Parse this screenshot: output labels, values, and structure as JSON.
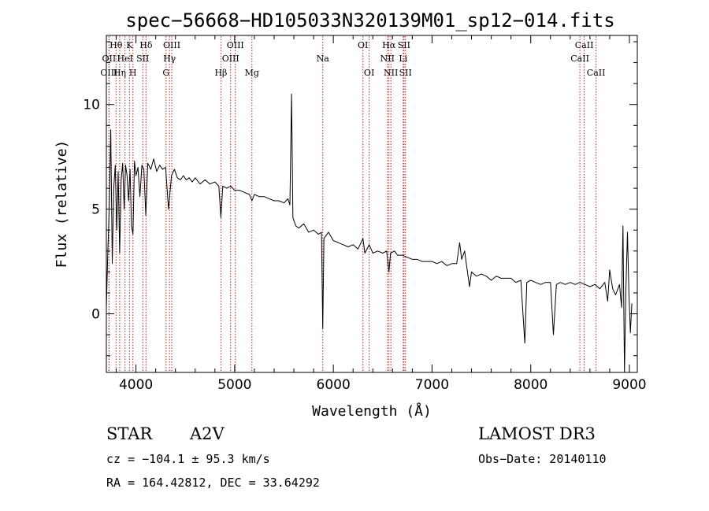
{
  "chart_data": {
    "type": "line",
    "title": "spec−56668−HD105033N320139M01_sp12−014.fits",
    "xlabel": "Wavelength (Å)",
    "ylabel": "Flux (relative)",
    "xlim": [
      3700,
      9080
    ],
    "ylim": [
      -2.8,
      13.3
    ],
    "xticks": [
      4000,
      5000,
      6000,
      7000,
      8000,
      9000
    ],
    "yticks": [
      0,
      5,
      10
    ],
    "series": [
      {
        "name": "flux",
        "points": [
          [
            3700,
            0.3
          ],
          [
            3715,
            3.0
          ],
          [
            3730,
            5.2
          ],
          [
            3745,
            8.8
          ],
          [
            3760,
            2.4
          ],
          [
            3775,
            6.0
          ],
          [
            3790,
            7.1
          ],
          [
            3805,
            4.0
          ],
          [
            3820,
            6.8
          ],
          [
            3835,
            2.9
          ],
          [
            3850,
            6.4
          ],
          [
            3865,
            7.2
          ],
          [
            3880,
            5.0
          ],
          [
            3895,
            7.1
          ],
          [
            3910,
            6.6
          ],
          [
            3925,
            5.4
          ],
          [
            3940,
            6.9
          ],
          [
            3955,
            4.2
          ],
          [
            3970,
            3.8
          ],
          [
            3985,
            7.3
          ],
          [
            4000,
            6.6
          ],
          [
            4020,
            7.0
          ],
          [
            4040,
            5.6
          ],
          [
            4060,
            7.1
          ],
          [
            4080,
            6.9
          ],
          [
            4100,
            4.7
          ],
          [
            4120,
            7.2
          ],
          [
            4150,
            6.9
          ],
          [
            4180,
            7.4
          ],
          [
            4210,
            6.8
          ],
          [
            4240,
            7.1
          ],
          [
            4270,
            6.9
          ],
          [
            4300,
            7.0
          ],
          [
            4330,
            5.0
          ],
          [
            4360,
            6.6
          ],
          [
            4390,
            6.9
          ],
          [
            4420,
            6.5
          ],
          [
            4450,
            6.4
          ],
          [
            4480,
            6.6
          ],
          [
            4510,
            6.4
          ],
          [
            4540,
            6.5
          ],
          [
            4570,
            6.3
          ],
          [
            4600,
            6.5
          ],
          [
            4650,
            6.2
          ],
          [
            4700,
            6.4
          ],
          [
            4750,
            6.2
          ],
          [
            4800,
            6.3
          ],
          [
            4840,
            6.1
          ],
          [
            4861,
            4.6
          ],
          [
            4880,
            6.1
          ],
          [
            4920,
            6.0
          ],
          [
            4960,
            6.1
          ],
          [
            5000,
            5.9
          ],
          [
            5050,
            5.9
          ],
          [
            5100,
            5.8
          ],
          [
            5150,
            5.7
          ],
          [
            5175,
            5.4
          ],
          [
            5200,
            5.7
          ],
          [
            5250,
            5.6
          ],
          [
            5300,
            5.6
          ],
          [
            5350,
            5.5
          ],
          [
            5400,
            5.4
          ],
          [
            5450,
            5.4
          ],
          [
            5500,
            5.3
          ],
          [
            5540,
            5.5
          ],
          [
            5560,
            5.2
          ],
          [
            5577,
            10.5
          ],
          [
            5590,
            4.6
          ],
          [
            5620,
            4.2
          ],
          [
            5650,
            4.1
          ],
          [
            5700,
            4.3
          ],
          [
            5750,
            3.9
          ],
          [
            5800,
            4.0
          ],
          [
            5850,
            3.8
          ],
          [
            5880,
            3.9
          ],
          [
            5893,
            -0.7
          ],
          [
            5905,
            3.6
          ],
          [
            5950,
            3.9
          ],
          [
            6000,
            3.5
          ],
          [
            6050,
            3.4
          ],
          [
            6100,
            3.3
          ],
          [
            6150,
            3.2
          ],
          [
            6200,
            3.3
          ],
          [
            6250,
            3.1
          ],
          [
            6300,
            3.6
          ],
          [
            6320,
            2.9
          ],
          [
            6363,
            3.3
          ],
          [
            6400,
            2.9
          ],
          [
            6450,
            3.0
          ],
          [
            6500,
            2.9
          ],
          [
            6540,
            3.0
          ],
          [
            6563,
            2.0
          ],
          [
            6580,
            2.9
          ],
          [
            6620,
            3.0
          ],
          [
            6650,
            2.8
          ],
          [
            6700,
            2.8
          ],
          [
            6750,
            2.7
          ],
          [
            6800,
            2.6
          ],
          [
            6850,
            2.6
          ],
          [
            6900,
            2.5
          ],
          [
            6950,
            2.5
          ],
          [
            7000,
            2.5
          ],
          [
            7050,
            2.4
          ],
          [
            7100,
            2.5
          ],
          [
            7150,
            2.3
          ],
          [
            7200,
            2.4
          ],
          [
            7250,
            2.4
          ],
          [
            7280,
            3.4
          ],
          [
            7300,
            2.6
          ],
          [
            7330,
            3.0
          ],
          [
            7350,
            2.3
          ],
          [
            7380,
            1.3
          ],
          [
            7400,
            2.0
          ],
          [
            7450,
            1.8
          ],
          [
            7500,
            1.9
          ],
          [
            7550,
            1.8
          ],
          [
            7600,
            1.6
          ],
          [
            7650,
            1.8
          ],
          [
            7700,
            1.7
          ],
          [
            7750,
            1.7
          ],
          [
            7800,
            1.7
          ],
          [
            7850,
            1.5
          ],
          [
            7900,
            1.6
          ],
          [
            7940,
            -1.4
          ],
          [
            7960,
            1.5
          ],
          [
            8000,
            1.6
          ],
          [
            8050,
            1.5
          ],
          [
            8100,
            1.4
          ],
          [
            8150,
            1.5
          ],
          [
            8200,
            1.5
          ],
          [
            8230,
            -1.0
          ],
          [
            8260,
            1.4
          ],
          [
            8300,
            1.5
          ],
          [
            8350,
            1.4
          ],
          [
            8400,
            1.5
          ],
          [
            8450,
            1.4
          ],
          [
            8500,
            1.5
          ],
          [
            8550,
            1.4
          ],
          [
            8600,
            1.3
          ],
          [
            8650,
            1.4
          ],
          [
            8700,
            1.2
          ],
          [
            8750,
            1.5
          ],
          [
            8780,
            0.6
          ],
          [
            8800,
            2.1
          ],
          [
            8830,
            1.2
          ],
          [
            8860,
            0.9
          ],
          [
            8900,
            1.4
          ],
          [
            8920,
            0.3
          ],
          [
            8935,
            4.2
          ],
          [
            8950,
            -2.8
          ],
          [
            8965,
            1.3
          ],
          [
            8980,
            3.9
          ],
          [
            8995,
            0.9
          ],
          [
            9010,
            -0.9
          ],
          [
            9025,
            0.5
          ]
        ]
      }
    ],
    "spectral_lines": [
      {
        "label": "Hθ",
        "wavelength": 3798,
        "row": 1
      },
      {
        "label": "OII",
        "wavelength": 3727,
        "row": 2
      },
      {
        "label": "OIII",
        "wavelength": 3727,
        "row": 3
      },
      {
        "label": "K",
        "wavelength": 3934,
        "row": 1
      },
      {
        "label": "HeI",
        "wavelength": 3889,
        "row": 2
      },
      {
        "label": "Hη",
        "wavelength": 3835,
        "row": 3
      },
      {
        "label": "H",
        "wavelength": 3969,
        "row": 3
      },
      {
        "label": "SII",
        "wavelength": 4069,
        "row": 2
      },
      {
        "label": "Hδ",
        "wavelength": 4102,
        "row": 1
      },
      {
        "label": "OIII",
        "wavelength": 4363,
        "row": 1
      },
      {
        "label": "Hγ",
        "wavelength": 4340,
        "row": 2
      },
      {
        "label": "G",
        "wavelength": 4305,
        "row": 3
      },
      {
        "label": "OIII",
        "wavelength": 5007,
        "row": 1
      },
      {
        "label": "OIII",
        "wavelength": 4959,
        "row": 2
      },
      {
        "label": "Hβ",
        "wavelength": 4861,
        "row": 3
      },
      {
        "label": "Mg",
        "wavelength": 5175,
        "row": 3
      },
      {
        "label": "Na",
        "wavelength": 5893,
        "row": 2
      },
      {
        "label": "OI",
        "wavelength": 6300,
        "row": 1
      },
      {
        "label": "OI",
        "wavelength": 6363,
        "row": 3
      },
      {
        "label": "Hα",
        "wavelength": 6563,
        "row": 1
      },
      {
        "label": "SII",
        "wavelength": 6716,
        "row": 1
      },
      {
        "label": "NII",
        "wavelength": 6548,
        "row": 2
      },
      {
        "label": "Li",
        "wavelength": 6708,
        "row": 2
      },
      {
        "label": "NII",
        "wavelength": 6583,
        "row": 3
      },
      {
        "label": "SII",
        "wavelength": 6731,
        "row": 3
      },
      {
        "label": "CaII",
        "wavelength": 8542,
        "row": 1
      },
      {
        "label": "CaII",
        "wavelength": 8498,
        "row": 2
      },
      {
        "label": "CaII",
        "wavelength": 8662,
        "row": 3
      }
    ],
    "line_color": "#000000",
    "marker_color": "#b22222"
  },
  "info": {
    "object_class": "STAR",
    "subclass": "A2V",
    "survey": "LAMOST DR3",
    "redshift": "cz = −104.1 ± 95.3 km/s",
    "obs_date": "Obs−Date: 20140110",
    "coords": "RA = 164.42812, DEC =  33.64292"
  }
}
